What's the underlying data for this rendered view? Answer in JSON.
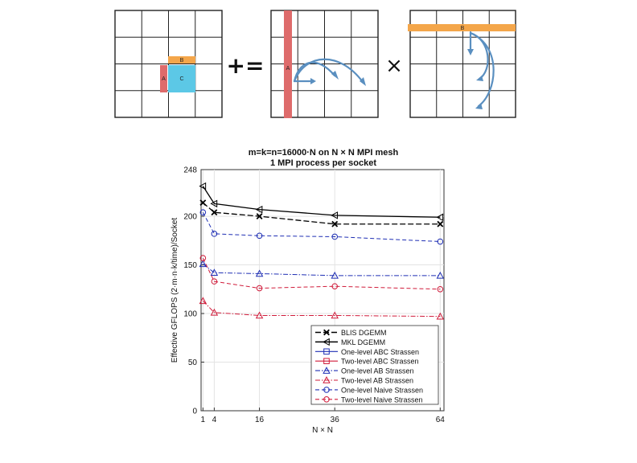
{
  "diagram": {
    "panels": [
      {
        "id": "C",
        "labels": [
          "A",
          "B",
          "C"
        ]
      },
      {
        "id": "A",
        "labels": [
          "A"
        ]
      },
      {
        "id": "B",
        "labels": [
          "B"
        ]
      }
    ],
    "operators": {
      "plus_equals": "+=",
      "times": "×"
    },
    "colors": {
      "a_block": "#de6b6b",
      "b_block": "#f4a64a",
      "c_block": "#5cc8e6",
      "arrow": "#5a8fc0",
      "grid": "#222222"
    }
  },
  "chart_data": {
    "type": "line",
    "title": "m=k=n=16000·N on N × N MPI mesh",
    "subtitle": "1 MPI process per socket",
    "xlabel": "N × N",
    "ylabel": "Effective GFLOPS (2·m·n·k/time)/Socket",
    "x": [
      1,
      4,
      16,
      36,
      64
    ],
    "xticks": [
      "1",
      "4",
      "16",
      "36",
      "64"
    ],
    "ylim": [
      0,
      248
    ],
    "yticks": [
      0,
      50,
      100,
      150,
      200,
      248
    ],
    "grid": true,
    "legend_position": "lower-right",
    "series": [
      {
        "name": "BLIS DGEMM",
        "color": "#000000",
        "dash": "long-dash",
        "marker": "x",
        "values": [
          214,
          204,
          200,
          192,
          192
        ]
      },
      {
        "name": "MKL DGEMM",
        "color": "#000000",
        "dash": "solid",
        "marker": "triangle-left",
        "values": [
          231,
          213,
          207,
          201,
          199
        ]
      },
      {
        "name": "One-level ABC Strassen",
        "color": "#1f2fb4",
        "dash": "solid",
        "marker": "square",
        "values": [
          null,
          null,
          null,
          null,
          null
        ]
      },
      {
        "name": "Two-level ABC Strassen",
        "color": "#d01b3a",
        "dash": "solid",
        "marker": "square",
        "values": [
          null,
          null,
          null,
          null,
          null
        ]
      },
      {
        "name": "One-level AB Strassen",
        "color": "#1f2fb4",
        "dash": "dash-dot",
        "marker": "triangle-up",
        "values": [
          151,
          142,
          141,
          139,
          139
        ]
      },
      {
        "name": "Two-level AB Strassen",
        "color": "#d01b3a",
        "dash": "dash-dot",
        "marker": "triangle-up",
        "values": [
          113,
          101,
          98,
          98,
          97
        ]
      },
      {
        "name": "One-level Naive Strassen",
        "color": "#1f2fb4",
        "dash": "dashed",
        "marker": "circle",
        "values": [
          204,
          182,
          180,
          179,
          174
        ]
      },
      {
        "name": "Two-level Naive Strassen",
        "color": "#d01b3a",
        "dash": "dashed",
        "marker": "circle",
        "values": [
          157,
          133,
          126,
          128,
          125
        ]
      }
    ]
  }
}
